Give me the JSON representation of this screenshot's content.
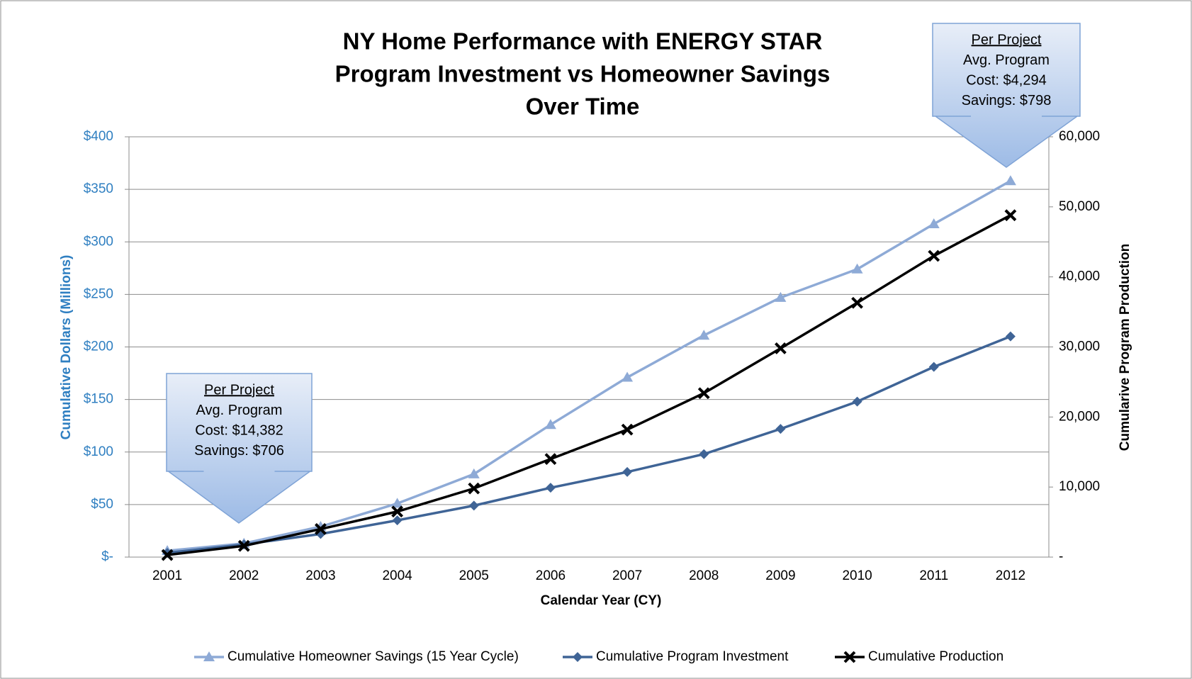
{
  "chart_data": {
    "type": "line",
    "title": [
      "NY Home Performance with ENERGY STAR",
      "Program Investment vs Homeowner Savings",
      "Over Time"
    ],
    "x_label": "Calendar Year (CY)",
    "y_label": "Cumulative Dollars (Millions)",
    "y2_label": "Cumularive Program Production",
    "categories": [
      "2001",
      "2002",
      "2003",
      "2004",
      "2005",
      "2006",
      "2007",
      "2008",
      "2009",
      "2010",
      "2011",
      "2012"
    ],
    "series": [
      {
        "name": "Cumulative Homeowner Savings (15 Year Cycle)",
        "color": "#8eaad6",
        "marker": "triangle",
        "values": [
          6,
          13,
          29,
          51,
          79,
          126,
          171,
          211,
          247,
          274,
          317,
          358
        ]
      },
      {
        "name": "Cumulative Program Investment",
        "color": "#3f6496",
        "marker": "diamond",
        "values": [
          4,
          12,
          22,
          35,
          49,
          66,
          81,
          98,
          122,
          148,
          181,
          210
        ]
      },
      {
        "name": "Cumulative Production",
        "color": "#000000",
        "marker": "x",
        "axis": "y2",
        "values": [
          300,
          1600,
          4000,
          6500,
          9800,
          14000,
          18200,
          23400,
          29800,
          36300,
          43000,
          48800
        ]
      }
    ],
    "ylim": [
      0,
      400
    ],
    "yticks": [
      {
        "value": 0,
        "label": "$-"
      },
      {
        "value": 50,
        "label": "$50"
      },
      {
        "value": 100,
        "label": "$100"
      },
      {
        "value": 150,
        "label": "$150"
      },
      {
        "value": 200,
        "label": "$200"
      },
      {
        "value": 250,
        "label": "$250"
      },
      {
        "value": 300,
        "label": "$300"
      },
      {
        "value": 350,
        "label": "$350"
      },
      {
        "value": 400,
        "label": "$400"
      }
    ],
    "y2lim": [
      0,
      60000
    ],
    "y2ticks": [
      {
        "value": 0,
        "label": "-"
      },
      {
        "value": 10000,
        "label": "10,000"
      },
      {
        "value": 20000,
        "label": "20,000"
      },
      {
        "value": 30000,
        "label": "30,000"
      },
      {
        "value": 40000,
        "label": "40,000"
      },
      {
        "value": 50000,
        "label": "50,000"
      },
      {
        "value": 60000,
        "label": "60,000"
      }
    ],
    "grid": true,
    "legend": "bottom",
    "annotations": [
      {
        "lines": [
          "Per Project",
          "Avg. Program",
          "Cost: $14,382",
          "Savings: $706"
        ]
      },
      {
        "lines": [
          "Per Project",
          "Avg. Program",
          "Cost: $4,294",
          "Savings: $798"
        ]
      }
    ]
  }
}
